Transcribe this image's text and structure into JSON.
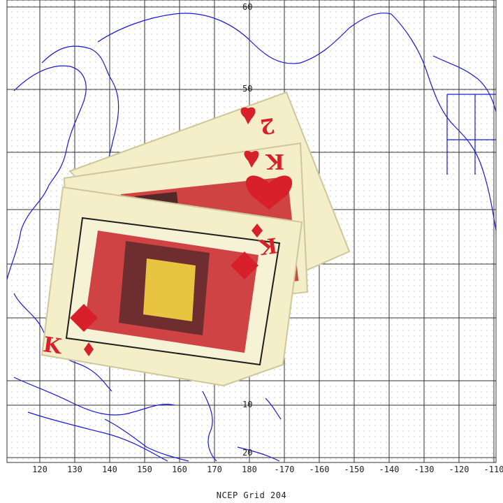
{
  "figure": {
    "caption": "NCEP Grid 204",
    "lat_labels": [
      "60",
      "50",
      "10",
      "20"
    ],
    "lon_labels": [
      "120",
      "130",
      "140",
      "150",
      "160",
      "170",
      "180",
      "-170",
      "-160",
      "-150",
      "-140",
      "-130",
      "-120",
      "-110"
    ]
  },
  "cards": [
    {
      "rank": "2",
      "suit": "hearts"
    },
    {
      "rank": "K",
      "suit": "hearts"
    },
    {
      "rank": "K",
      "suit": "diamonds"
    }
  ],
  "colors": {
    "coastline": "#1a1ad6",
    "grid": "#333333",
    "card_face": "#f4efc9",
    "suit_red": "#d8202a"
  }
}
